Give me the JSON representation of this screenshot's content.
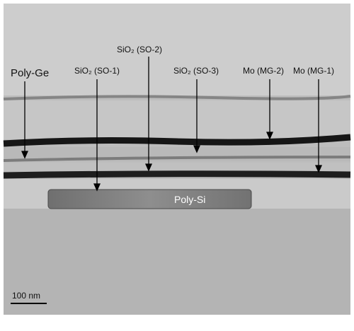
{
  "labels": {
    "poly_ge": "Poly-Ge",
    "sio2_so1": "SiO₂ (SO-1)",
    "sio2_so2": "SiO₂ (SO-2)",
    "sio2_so3": "SiO₂ (SO-3)",
    "mo_mg2": "Mo (MG-2)",
    "mo_mg1": "Mo (MG-1)",
    "poly_si": "Poly-Si"
  },
  "scale_bar": "100 nm"
}
